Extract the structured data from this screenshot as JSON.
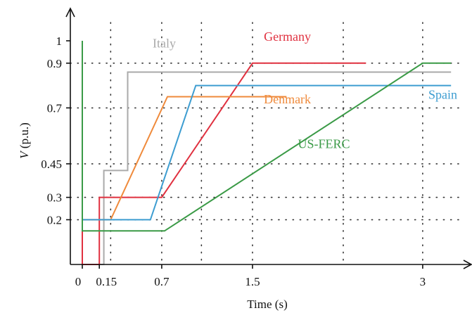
{
  "chart_data": {
    "type": "line",
    "xlabel_prefix": "",
    "xlabel": "Time (s)",
    "ylabel_italic": "V",
    "ylabel_rest": " (p.u.)",
    "xlim": [
      -0.4,
      3.55
    ],
    "ylim": [
      -0.02,
      1.12
    ],
    "x_ticks": [
      {
        "value": 0,
        "label": "0"
      },
      {
        "value": 0.15,
        "label": "0.15"
      },
      {
        "value": 0.7,
        "label": "0.7"
      },
      {
        "value": 1.5,
        "label": "1.5"
      },
      {
        "value": 3,
        "label": "3"
      }
    ],
    "y_ticks": [
      {
        "value": 1,
        "label": "1"
      },
      {
        "value": 0.9,
        "label": "0.9"
      },
      {
        "value": 0.7,
        "label": "0.7"
      },
      {
        "value": 0.45,
        "label": "0.45"
      },
      {
        "value": 0.3,
        "label": "0.3"
      },
      {
        "value": 0.2,
        "label": "0.2"
      }
    ],
    "x_grid": [
      0.25,
      0.7,
      1.05,
      1.5,
      2.3,
      3
    ],
    "y_grid": [
      0.9,
      0.7,
      0.45,
      0.3,
      0.2
    ],
    "grid": true,
    "series": [
      {
        "name": "Italy",
        "color": "#aaaaaa",
        "points": [
          [
            0.0,
            1.0
          ],
          [
            0.0,
            0.0
          ],
          [
            0.19,
            0.0
          ],
          [
            0.19,
            0.42
          ],
          [
            0.4,
            0.42
          ],
          [
            0.4,
            0.86
          ],
          [
            3.25,
            0.86
          ]
        ]
      },
      {
        "name": "Germany",
        "color": "#e0303f",
        "points": [
          [
            0.0,
            1.0
          ],
          [
            0.0,
            0.0
          ],
          [
            0.15,
            0.0
          ],
          [
            0.15,
            0.3
          ],
          [
            0.7,
            0.3
          ],
          [
            1.5,
            0.9
          ],
          [
            2.5,
            0.9
          ]
        ]
      },
      {
        "name": "Denmark",
        "color": "#ef8a3b",
        "points": [
          [
            0.0,
            1.0
          ],
          [
            0.0,
            0.2
          ],
          [
            0.25,
            0.2
          ],
          [
            0.75,
            0.75
          ],
          [
            1.8,
            0.75
          ]
        ]
      },
      {
        "name": "Spain",
        "color": "#3d9dd1",
        "points": [
          [
            0.0,
            1.0
          ],
          [
            0.0,
            0.2
          ],
          [
            0.6,
            0.2
          ],
          [
            1.0,
            0.8
          ],
          [
            3.25,
            0.8
          ]
        ]
      },
      {
        "name": "US-FERC",
        "color": "#3a9a46",
        "points": [
          [
            0.0,
            1.0
          ],
          [
            0.0,
            0.15
          ],
          [
            0.725,
            0.15
          ],
          [
            3.0,
            0.9
          ],
          [
            3.25,
            0.9
          ]
        ]
      }
    ],
    "labels": [
      {
        "text": "Italy",
        "color": "#aaaaaa",
        "x": 0.62,
        "y": 0.97
      },
      {
        "text": "Germany",
        "color": "#e0303f",
        "x": 1.6,
        "y": 1.0
      },
      {
        "text": "Denmark",
        "color": "#ef8a3b",
        "x": 1.6,
        "y": 0.72
      },
      {
        "text": "Spain",
        "color": "#3d9dd1",
        "x": 3.05,
        "y": 0.74
      },
      {
        "text": "US-FERC",
        "color": "#3a9a46",
        "x": 1.9,
        "y": 0.52
      }
    ]
  }
}
